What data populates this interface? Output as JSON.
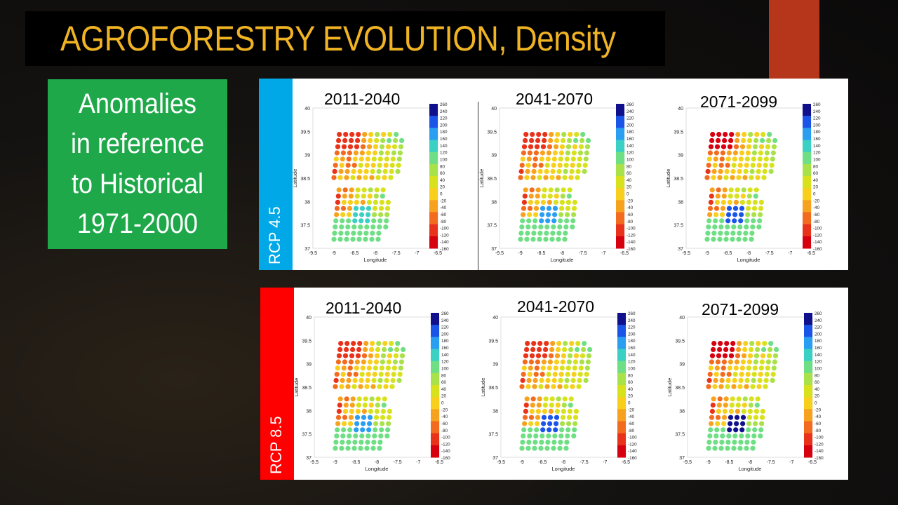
{
  "slide": {
    "title": "AGROFORESTRY EVOLUTION, Density",
    "note_lines": [
      "Anomalies",
      "in reference",
      "to Historical",
      "1971-2000"
    ]
  },
  "colors": {
    "title_text": "#f0b323",
    "accent_bar": "#b5361a",
    "note_box": "#1fa84a",
    "rcp45": "#00a8e8",
    "rcp85": "#ff0000"
  },
  "map_axes": {
    "xlabel": "Longitude",
    "ylabel": "Latitude",
    "xticks": [
      "-9.5",
      "-9",
      "-8.5",
      "-8",
      "-7.5",
      "-7",
      "-6.5"
    ],
    "yticks": [
      "40",
      "39.5",
      "39",
      "38.5",
      "38",
      "37.5",
      "37"
    ],
    "colorbar_ticks": [
      "260",
      "240",
      "220",
      "200",
      "180",
      "160",
      "140",
      "120",
      "100",
      "80",
      "60",
      "40",
      "20",
      "0",
      "-20",
      "-40",
      "-60",
      "-80",
      "-100",
      "-120",
      "-140",
      "-160"
    ]
  },
  "panels": [
    {
      "scenario": "RCP 4.5",
      "periods": [
        "2011-2040",
        "2041-2070",
        "2071-2099"
      ]
    },
    {
      "scenario": "RCP 8.5",
      "periods": [
        "2011-2040",
        "2041-2070",
        "2071-2099"
      ]
    }
  ]
}
